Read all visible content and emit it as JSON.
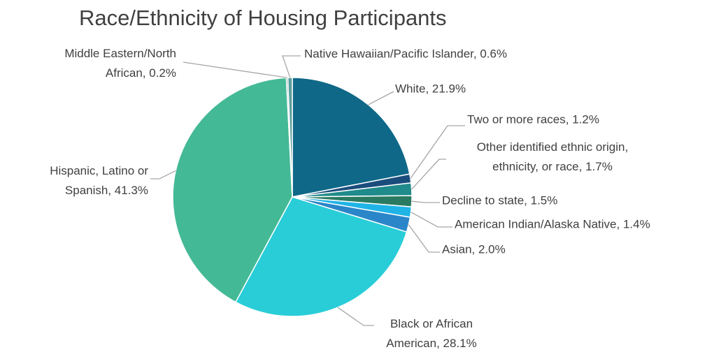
{
  "chart_data": {
    "type": "pie",
    "title": "Race/Ethnicity of Housing Participants",
    "values": [
      21.9,
      1.2,
      1.7,
      1.5,
      1.4,
      2.0,
      28.1,
      41.3,
      0.2,
      0.6
    ],
    "value_labels": [
      "White, 21.9%",
      "Two or more races, 1.2%",
      "Other identified ethnic origin,\nethnicity, or race, 1.7%",
      "Decline to state, 1.5%",
      "American Indian/Alaska Native, 1.4%",
      "Asian, 2.0%",
      "Black or African\nAmerican, 28.1%",
      "Hispanic, Latino or\nSpanish, 41.3%",
      "Middle Eastern/North\nAfrican, 0.2%",
      "Native Hawaiian/Pacific Islander, 0.6%"
    ],
    "colors": [
      "#0f6888",
      "#1b4d7c",
      "#1f8b8a",
      "#2a7a61",
      "#20b4e6",
      "#2a86c8",
      "#29cdd8",
      "#44b996",
      "#3d9079",
      "#5a9e9c"
    ]
  }
}
